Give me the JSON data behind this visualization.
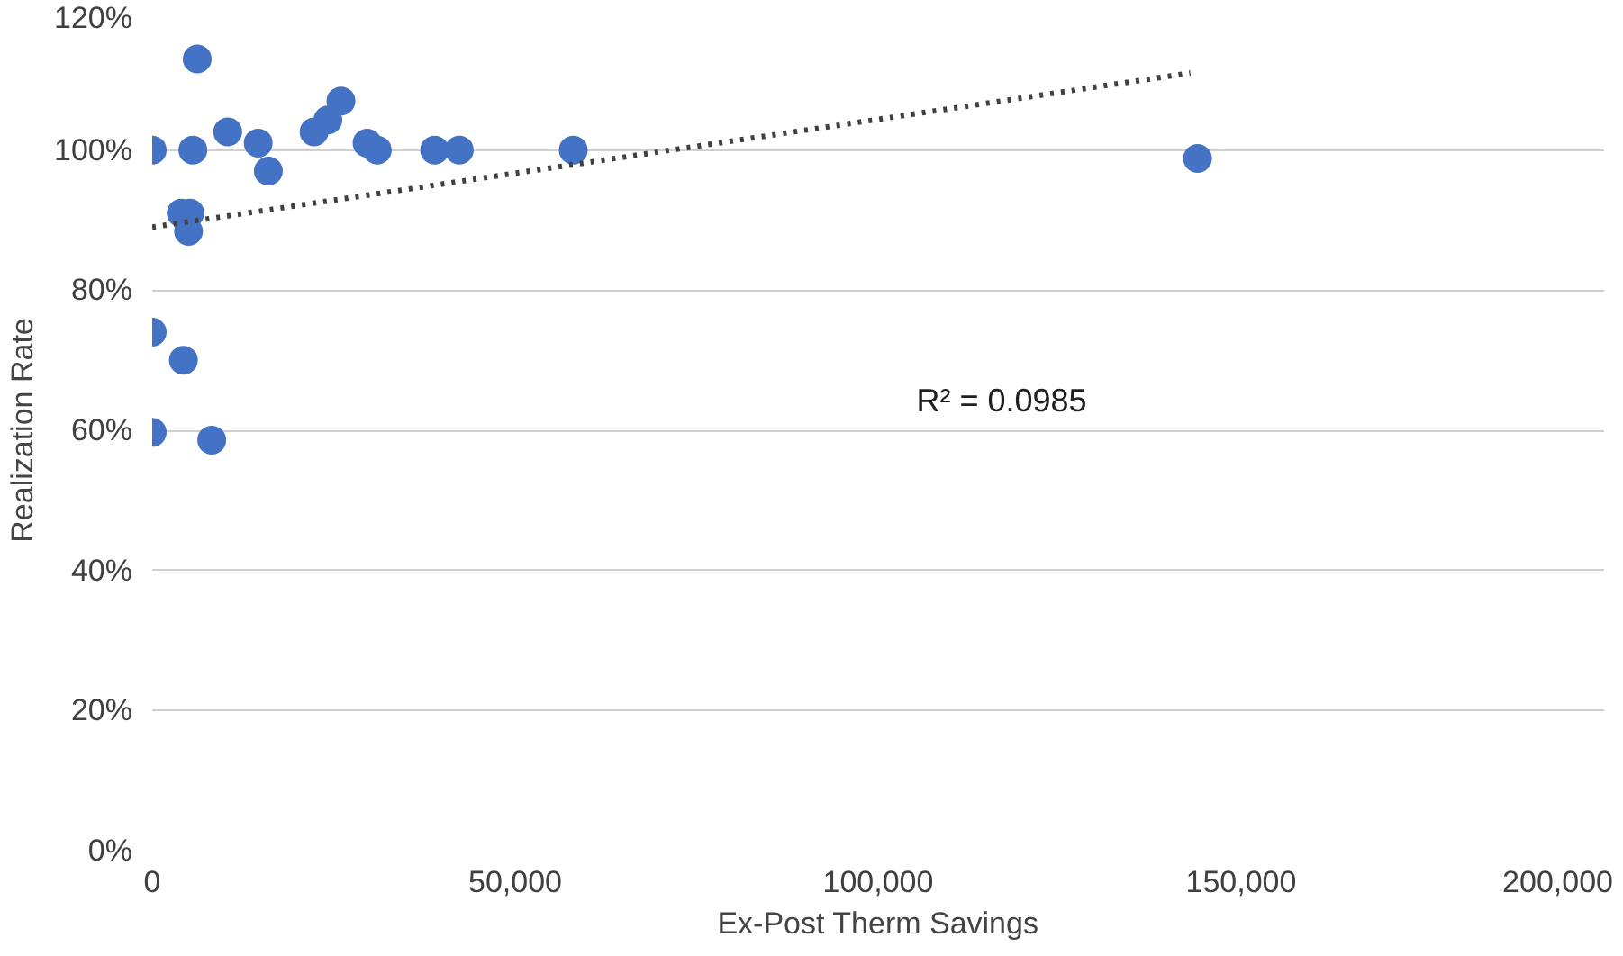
{
  "chart_data": {
    "type": "scatter",
    "xlabel": "Ex-Post Therm Savings",
    "ylabel": "Realization Rate",
    "xlim": [
      0,
      200000
    ],
    "xticks": [
      {
        "value": 0,
        "label": "0"
      },
      {
        "value": 50000,
        "label": "50,000"
      },
      {
        "value": 100000,
        "label": "100,000"
      },
      {
        "value": 150000,
        "label": "150,000"
      },
      {
        "value": 200000,
        "label": "200,000"
      }
    ],
    "ylim": [
      0,
      120
    ],
    "yticks": [
      {
        "value": 0,
        "label": "0%"
      },
      {
        "value": 20,
        "label": "20%"
      },
      {
        "value": 40,
        "label": "40%"
      },
      {
        "value": 60,
        "label": "60%"
      },
      {
        "value": 80,
        "label": "80%"
      },
      {
        "value": 100,
        "label": "100%"
      },
      {
        "value": 120,
        "label": "120%"
      }
    ],
    "grid": "y",
    "series": [
      {
        "marker": "circle",
        "color": "#4472c4",
        "x": [
          0,
          6200,
          5600,
          10400,
          14600,
          16000,
          22300,
          24200,
          26000,
          29600,
          31000,
          38900,
          42300,
          58000,
          144000,
          4000,
          5200,
          5000,
          0,
          4300,
          0,
          8200
        ],
        "values": [
          100,
          113,
          100,
          102.6,
          101,
          97,
          102.6,
          104.3,
          107,
          101,
          100,
          100,
          100,
          100,
          98.8,
          91,
          91,
          88.4,
          74,
          70,
          59.7,
          58.6
        ]
      },
      {
        "type": "line",
        "color": "#404040",
        "line_style": "dotted",
        "x": [
          0,
          143000
        ],
        "values": [
          89,
          111
        ]
      }
    ],
    "annotations": [
      "R² = 0.0985"
    ]
  }
}
